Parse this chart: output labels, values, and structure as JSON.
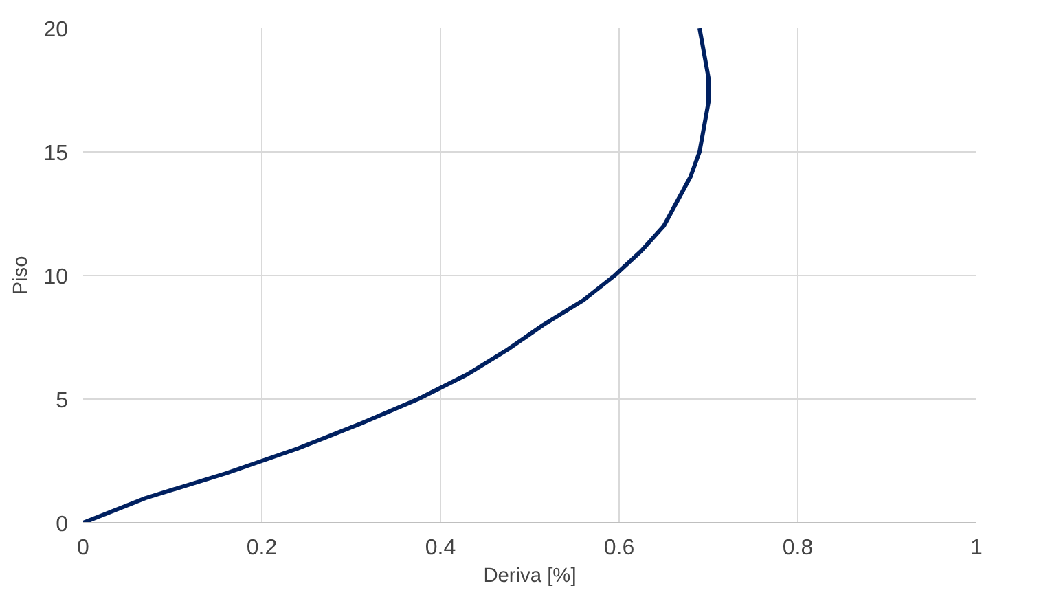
{
  "chart_data": {
    "type": "line",
    "xlabel": "Deriva [%]",
    "ylabel": "Piso",
    "x": [
      0,
      0.07,
      0.16,
      0.24,
      0.31,
      0.375,
      0.43,
      0.475,
      0.515,
      0.56,
      0.595,
      0.625,
      0.65,
      0.665,
      0.68,
      0.69,
      0.695,
      0.7,
      0.7,
      0.695,
      0.69
    ],
    "series": [
      {
        "color": "#002060",
        "values": [
          0,
          1,
          2,
          3,
          4,
          5,
          6,
          7,
          8,
          9,
          10,
          11,
          12,
          13,
          14,
          15,
          16,
          17,
          18,
          19,
          20
        ]
      }
    ],
    "xlim": [
      0,
      1
    ],
    "ylim": [
      0,
      20
    ],
    "xticks": [
      0,
      0.2,
      0.4,
      0.6,
      0.8,
      1
    ],
    "yticks": [
      0,
      5,
      10,
      15,
      20
    ],
    "grid": true,
    "marker": "none",
    "line_style": "solid"
  }
}
